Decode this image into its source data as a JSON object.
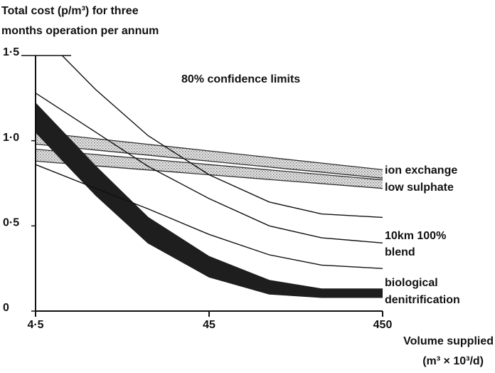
{
  "chart_data": {
    "type": "line",
    "title": [
      "Total cost (p/m³) for three",
      "months operation per annum"
    ],
    "x_label": [
      "Volume supplied",
      "(m³ × 10³/d)"
    ],
    "annotations": [
      "80% confidence limits",
      "ion exchange",
      "low sulphate",
      "10km 100%",
      "blend",
      "biological",
      "denitrification"
    ],
    "xscale": "log",
    "xlim": [
      4.5,
      450
    ],
    "ylim": [
      0,
      1.5
    ],
    "xticks": [
      {
        "value": 4.5,
        "label": "4·5"
      },
      45,
      450
    ],
    "yticks": [
      0,
      {
        "value": 0.5,
        "label": "0·5"
      },
      {
        "value": 1.0,
        "label": "1·0"
      },
      {
        "value": 1.5,
        "label": "1·5"
      }
    ],
    "series": [
      {
        "style": "stipple",
        "x": [
          4.5,
          45,
          450
        ],
        "upper": [
          1.05,
          0.94,
          0.83
        ],
        "lower": [
          0.98,
          0.88,
          0.78
        ]
      },
      {
        "style": "stipple",
        "x": [
          4.5,
          45,
          450
        ],
        "upper": [
          0.95,
          0.86,
          0.77
        ],
        "lower": [
          0.88,
          0.8,
          0.72
        ]
      },
      {
        "style": "dark",
        "color": "#1e1e1e",
        "x": [
          4.5,
          10,
          20,
          45,
          100,
          200,
          450
        ],
        "upper": [
          1.22,
          0.85,
          0.55,
          0.32,
          0.18,
          0.13,
          0.13
        ],
        "lower": [
          1.05,
          0.68,
          0.4,
          0.2,
          0.1,
          0.08,
          0.08
        ]
      },
      {
        "style": "line",
        "color": "#111",
        "x": [
          6.4,
          10,
          20,
          45,
          100,
          200,
          450
        ],
        "values": [
          1.5,
          1.3,
          1.03,
          0.8,
          0.64,
          0.57,
          0.55
        ]
      },
      {
        "style": "line",
        "color": "#111",
        "x": [
          4.5,
          10,
          20,
          45,
          100,
          200,
          450
        ],
        "values": [
          1.28,
          1.05,
          0.85,
          0.66,
          0.5,
          0.43,
          0.4
        ]
      },
      {
        "style": "line",
        "color": "#111",
        "x": [
          4.5,
          10,
          20,
          45,
          100,
          200,
          450
        ],
        "values": [
          0.86,
          0.72,
          0.6,
          0.45,
          0.33,
          0.27,
          0.25
        ]
      }
    ]
  }
}
